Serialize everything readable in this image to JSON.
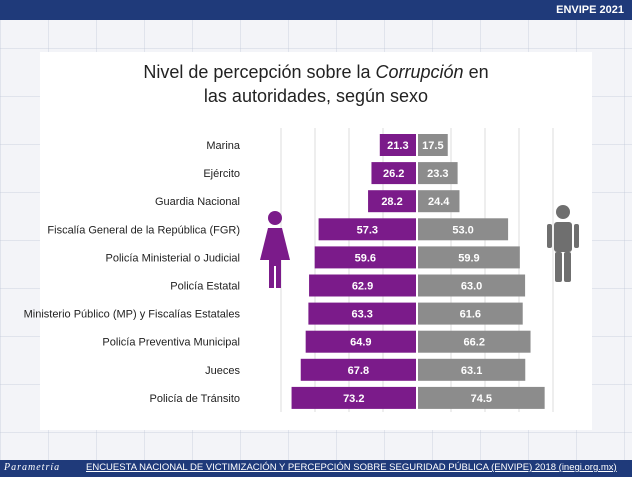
{
  "header": {
    "badge": "ENVIPE 2021"
  },
  "title": {
    "line1_prefix": "Nivel de percepción sobre la ",
    "line1_emph": "Corrupción",
    "line1_suffix": " en",
    "line2": "las autoridades, según sexo"
  },
  "footer": {
    "brand": "Parametría",
    "source": "ENCUESTA NACIONAL DE VICTIMIZACIÓN Y PERCEPCIÓN SOBRE SEGURIDAD PÚBLICA (ENVIPE) 2018 (inegi.org.mx)"
  },
  "colors": {
    "women": "#7b1b8a",
    "men": "#8c8c8c",
    "brand_blue": "#1f3a7a"
  },
  "icons": {
    "left": "woman-icon",
    "right": "man-icon"
  },
  "chart_data": {
    "type": "bar",
    "orientation": "horizontal-diverging",
    "categories": [
      "Marina",
      "Ejército",
      "Guardia Nacional",
      "Fiscalía General de la República (FGR)",
      "Policía Ministerial o Judicial",
      "Policía Estatal",
      "Ministerio Público (MP) y Fiscalías Estatales",
      "Policía Preventiva Municipal",
      "Jueces",
      "Policía de Tránsito"
    ],
    "series": [
      {
        "values": [
          21.3,
          26.2,
          28.2,
          57.3,
          59.6,
          62.9,
          63.3,
          64.9,
          67.8,
          73.2
        ],
        "labels": [
          "21.3",
          "26.2",
          "28.2",
          "57.3",
          "59.6",
          "62.9",
          "63.3",
          "64.9",
          "67.8",
          "73.2"
        ]
      },
      {
        "values": [
          17.5,
          23.3,
          24.4,
          53.0,
          59.9,
          63.0,
          61.6,
          66.2,
          63.1,
          74.5
        ],
        "labels": [
          "17.5",
          "23.3",
          "24.4",
          "53.0",
          "59.9",
          "63.0",
          "61.6",
          "66.2",
          "63.1",
          "74.5"
        ]
      }
    ],
    "xlim": [
      0,
      100
    ],
    "grid": true
  }
}
